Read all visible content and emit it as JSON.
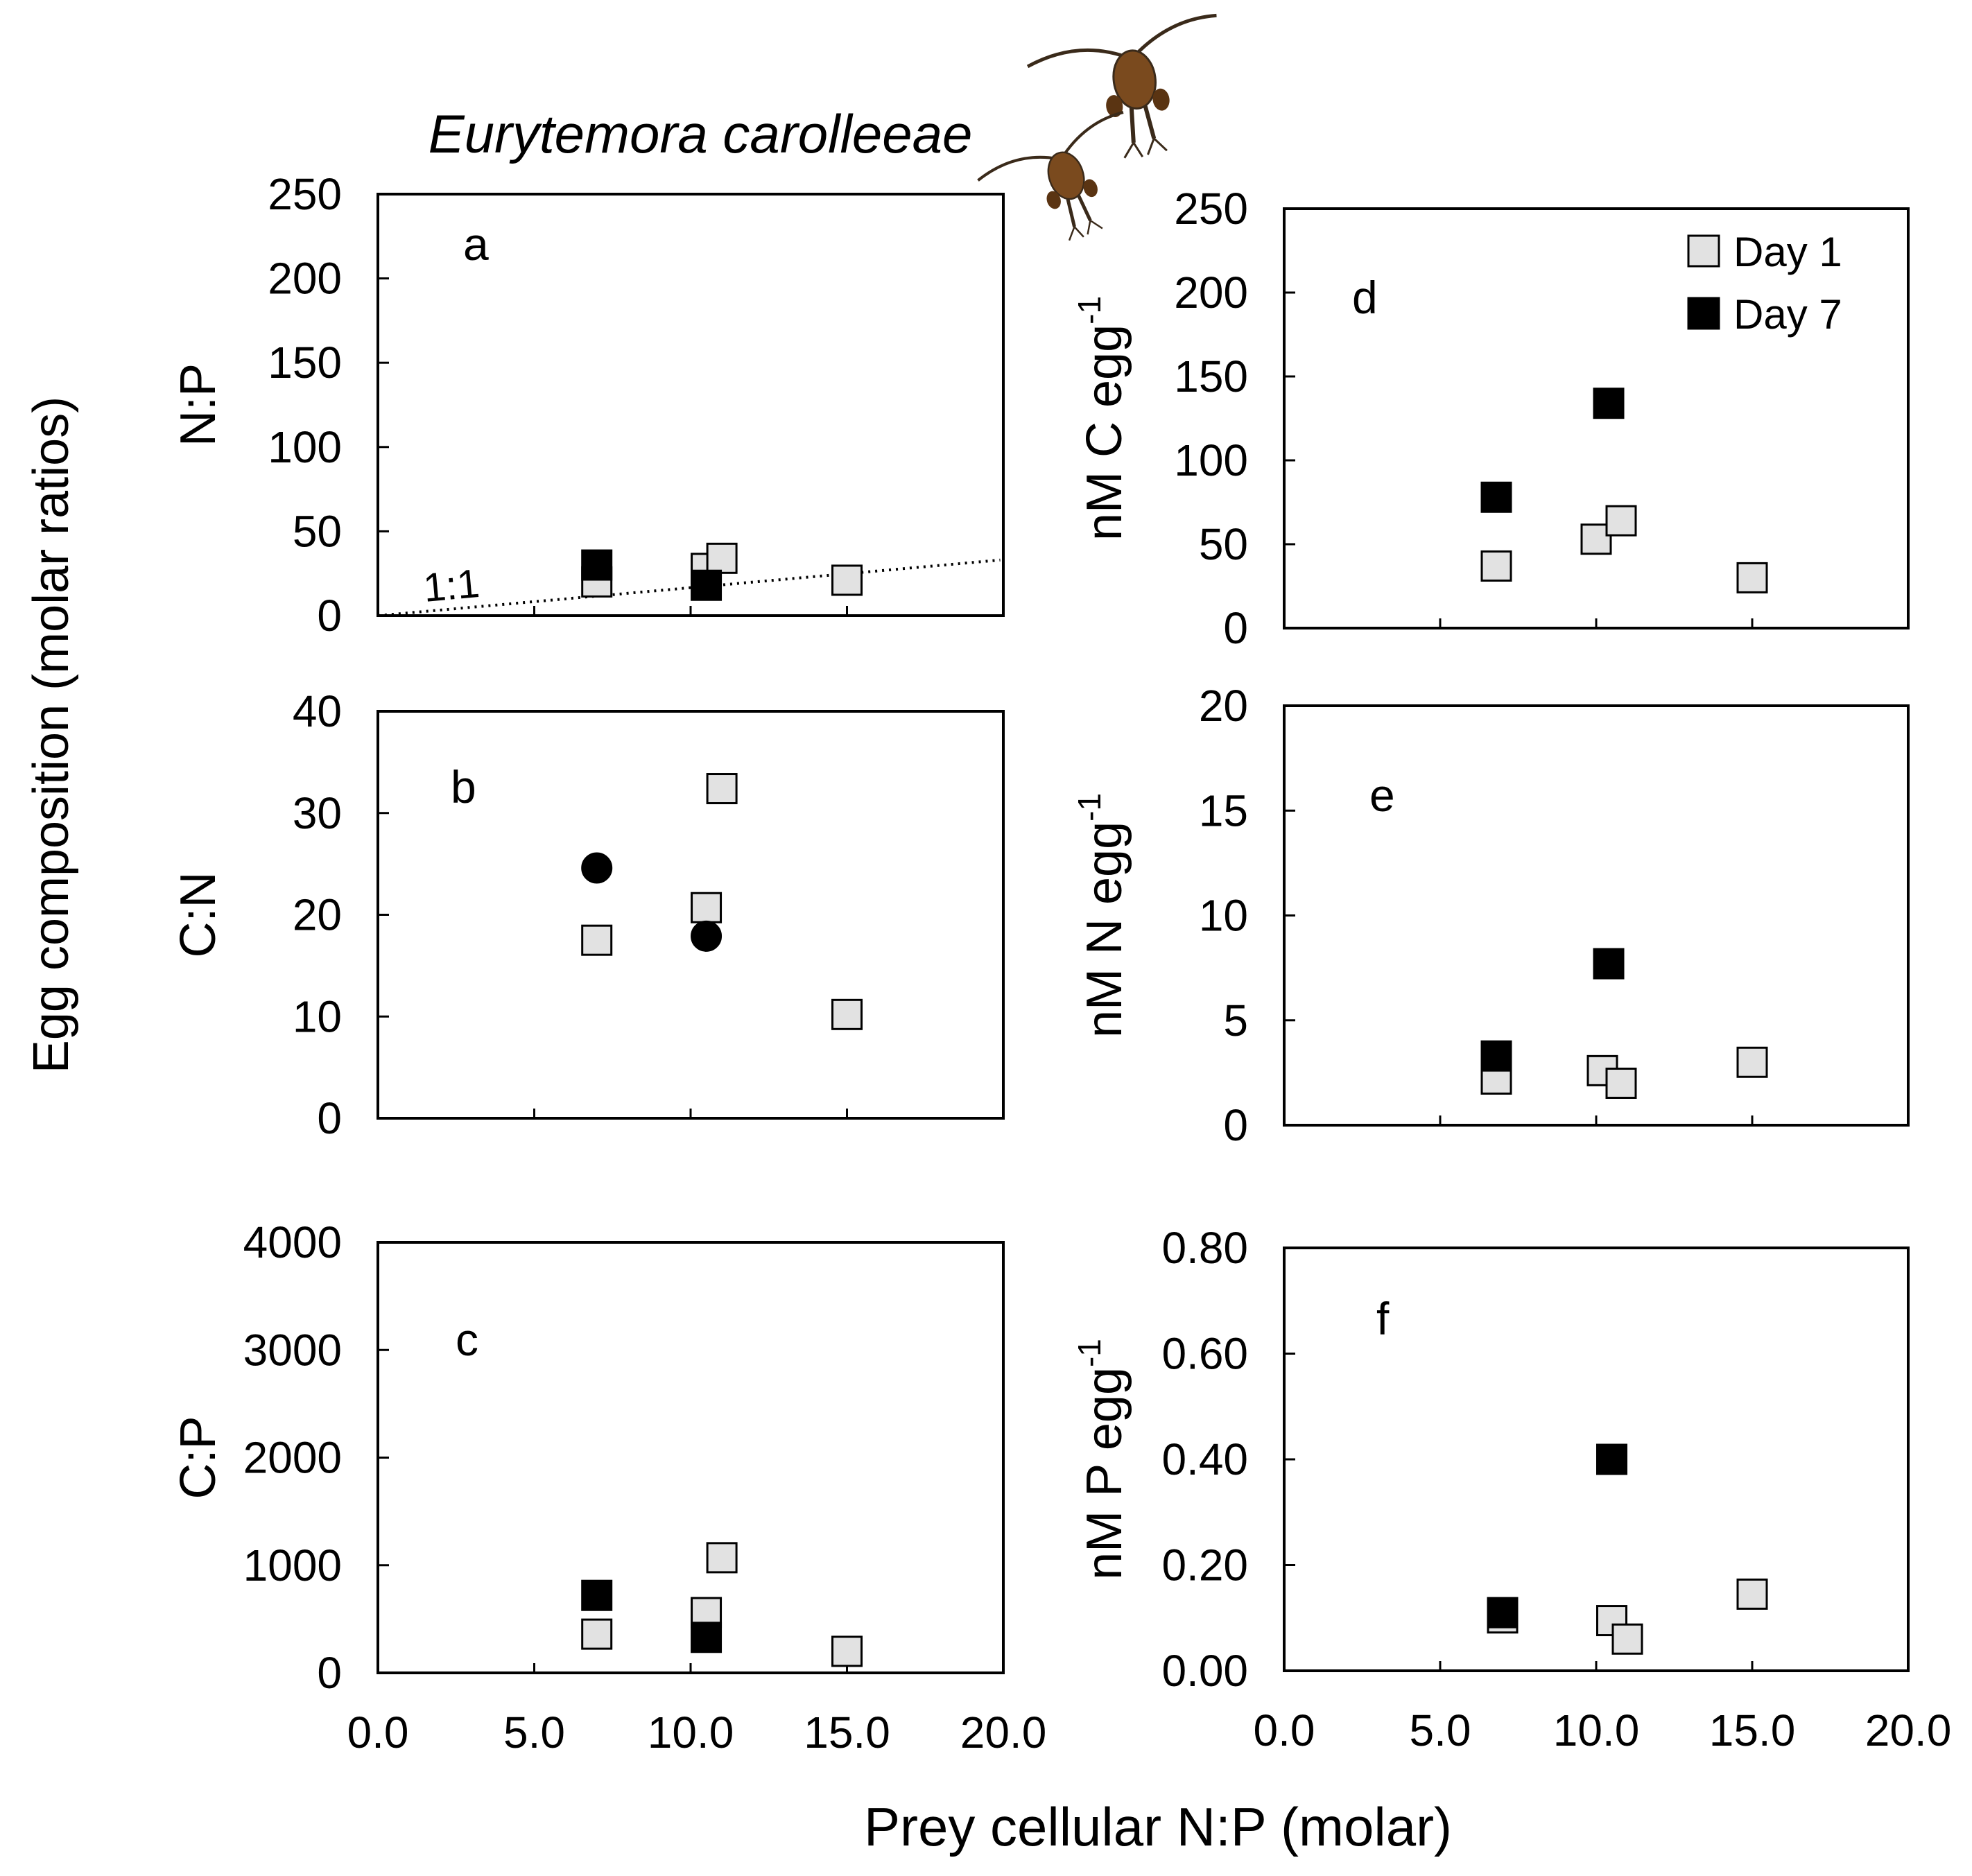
{
  "species_title": "Eurytemora carolleeae",
  "y_super_label": "Egg composition (molar ratios)",
  "x_super_label": "Prey cellular N:P (molar)",
  "colors": {
    "day1_fill": "#e2e2e2",
    "day7_fill": "#000000",
    "frame": "#000000",
    "copepod": "#7a4a1e"
  },
  "legend": {
    "entries": [
      {
        "label": "Day 1",
        "fill": "#e2e2e2"
      },
      {
        "label": "Day 7",
        "fill": "#000000"
      }
    ]
  },
  "chart_data": [
    {
      "id": "a",
      "panel_label": "a",
      "type": "scatter",
      "ylabel": "N:P",
      "ylabel_sup": "",
      "xlim": [
        0,
        20
      ],
      "ylim": [
        0,
        250
      ],
      "yticks": [
        "0",
        "50",
        "100",
        "150",
        "200",
        "250"
      ],
      "xticks": [
        "0.0",
        "5.0",
        "10.0",
        "15.0",
        "20.0"
      ],
      "show_xtick_labels": false,
      "reference_line": {
        "label": "1:1",
        "x": [
          0,
          19.9
        ],
        "y": [
          0,
          33
        ]
      },
      "series": [
        {
          "name": "Day 1",
          "marker": "square",
          "points": [
            [
              7.0,
              20
            ],
            [
              10.5,
              28
            ],
            [
              11.0,
              34
            ],
            [
              15.0,
              21
            ]
          ]
        },
        {
          "name": "Day 7",
          "marker": "square",
          "points": [
            [
              7.0,
              30
            ],
            [
              10.5,
              18
            ]
          ]
        }
      ]
    },
    {
      "id": "b",
      "panel_label": "b",
      "type": "scatter",
      "ylabel": "C:N",
      "ylabel_sup": "",
      "xlim": [
        0,
        20
      ],
      "ylim": [
        0,
        40
      ],
      "yticks": [
        "0",
        "10",
        "20",
        "30",
        "40"
      ],
      "xticks": [
        "0.0",
        "5.0",
        "10.0",
        "15.0",
        "20.0"
      ],
      "show_xtick_labels": false,
      "series": [
        {
          "name": "Day 1",
          "marker": "square",
          "points": [
            [
              7.0,
              17.5
            ],
            [
              10.5,
              20.7
            ],
            [
              11.0,
              32.4
            ],
            [
              15.0,
              10.2
            ]
          ]
        },
        {
          "name": "Day 7",
          "marker": "circle",
          "points": [
            [
              7.0,
              24.6
            ],
            [
              10.5,
              17.9
            ]
          ]
        }
      ]
    },
    {
      "id": "c",
      "panel_label": "c",
      "type": "scatter",
      "ylabel": "C:P",
      "ylabel_sup": "",
      "xlim": [
        0,
        20
      ],
      "ylim": [
        0,
        4000
      ],
      "yticks": [
        "0",
        "1000",
        "2000",
        "3000",
        "4000"
      ],
      "xticks": [
        "0.0",
        "5.0",
        "10.0",
        "15.0",
        "20.0"
      ],
      "show_xtick_labels": true,
      "series": [
        {
          "name": "Day 1",
          "marker": "square",
          "points": [
            [
              7.0,
              360
            ],
            [
              10.5,
              560
            ],
            [
              11.0,
              1070
            ],
            [
              15.0,
              200
            ]
          ]
        },
        {
          "name": "Day 7",
          "marker": "square",
          "points": [
            [
              7.0,
              720
            ],
            [
              10.5,
              330
            ]
          ]
        }
      ]
    },
    {
      "id": "d",
      "panel_label": "d",
      "type": "scatter",
      "ylabel": "nM C egg",
      "ylabel_sup": "-1",
      "xlim": [
        0,
        20
      ],
      "ylim": [
        0,
        250
      ],
      "yticks": [
        "0",
        "50",
        "100",
        "150",
        "200",
        "250"
      ],
      "xticks": [
        "0.0",
        "5.0",
        "10.0",
        "15.0",
        "20.0"
      ],
      "show_xtick_labels": false,
      "show_legend": true,
      "series": [
        {
          "name": "Day 1",
          "marker": "square",
          "points": [
            [
              6.8,
              37
            ],
            [
              10.0,
              53
            ],
            [
              10.8,
              64
            ],
            [
              15.0,
              30
            ]
          ]
        },
        {
          "name": "Day 7",
          "marker": "square",
          "points": [
            [
              6.8,
              78
            ],
            [
              10.4,
              134
            ]
          ]
        }
      ]
    },
    {
      "id": "e",
      "panel_label": "e",
      "type": "scatter",
      "ylabel": "nM N egg",
      "ylabel_sup": "-1",
      "xlim": [
        0,
        20
      ],
      "ylim": [
        0,
        20
      ],
      "yticks": [
        "0",
        "5",
        "10",
        "15",
        "20"
      ],
      "xticks": [
        "0.0",
        "5.0",
        "10.0",
        "15.0",
        "20.0"
      ],
      "show_xtick_labels": false,
      "series": [
        {
          "name": "Day 1",
          "marker": "square",
          "points": [
            [
              6.8,
              2.2
            ],
            [
              10.2,
              2.6
            ],
            [
              10.8,
              2.0
            ],
            [
              15.0,
              3.0
            ]
          ]
        },
        {
          "name": "Day 7",
          "marker": "square",
          "points": [
            [
              6.8,
              3.3
            ],
            [
              10.4,
              7.7
            ]
          ]
        }
      ]
    },
    {
      "id": "f",
      "panel_label": "f",
      "type": "scatter",
      "ylabel": "nM P egg",
      "ylabel_sup": "-1",
      "xlim": [
        0,
        20
      ],
      "ylim": [
        0,
        0.8
      ],
      "yticks": [
        "0.00",
        "0.20",
        "0.40",
        "0.60",
        "0.80"
      ],
      "xticks": [
        "0.0",
        "5.0",
        "10.0",
        "15.0",
        "20.0"
      ],
      "show_xtick_labels": true,
      "series": [
        {
          "name": "Day 1",
          "marker": "square",
          "points": [
            [
              7.0,
              0.1
            ],
            [
              10.5,
              0.095
            ],
            [
              11.0,
              0.06
            ],
            [
              15.0,
              0.145
            ]
          ]
        },
        {
          "name": "Day 7",
          "marker": "square",
          "points": [
            [
              7.0,
              0.11
            ],
            [
              10.5,
              0.4
            ]
          ]
        }
      ]
    }
  ]
}
